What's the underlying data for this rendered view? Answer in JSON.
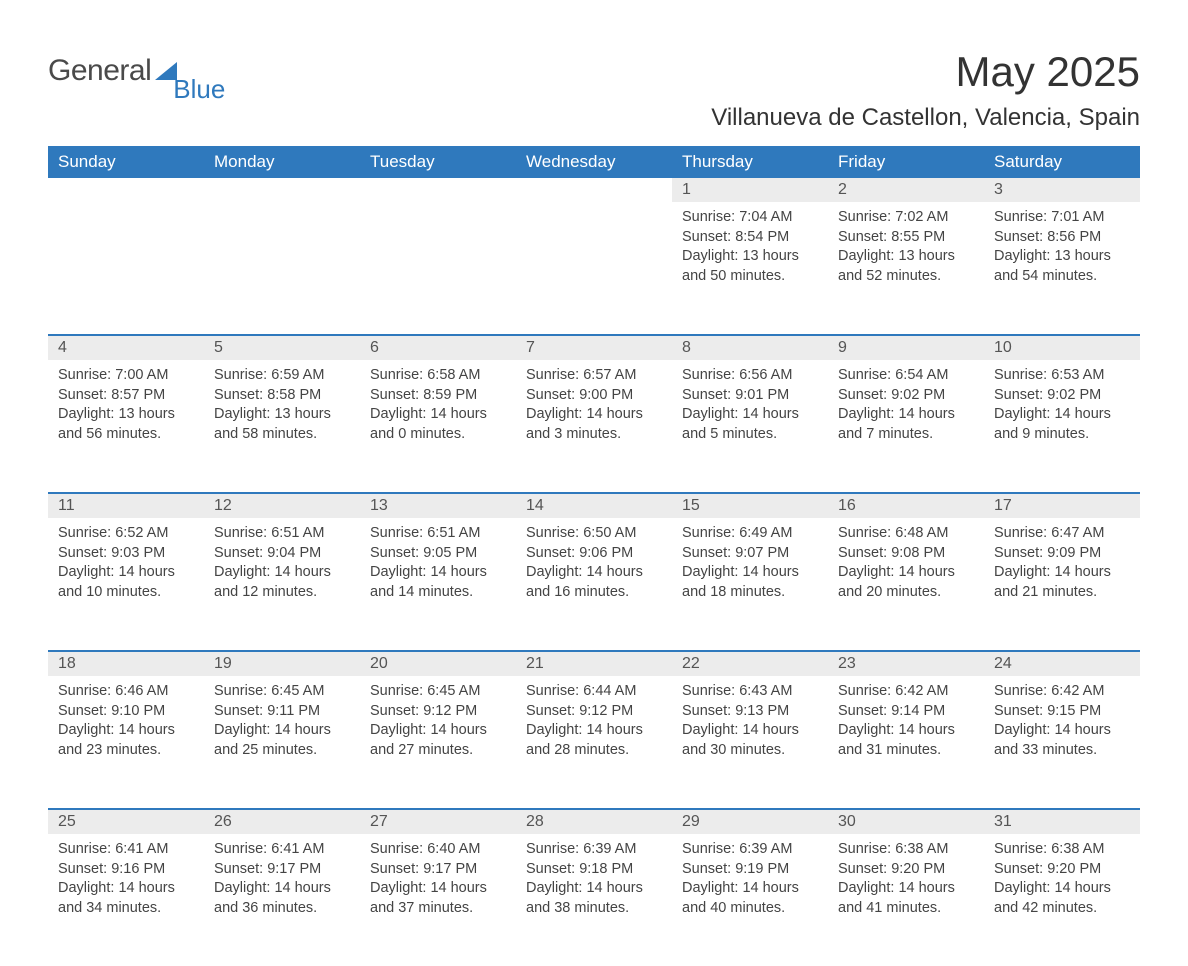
{
  "logo": {
    "word1": "General",
    "word2": "Blue"
  },
  "title": "May 2025",
  "location": "Villanueva de Castellon, Valencia, Spain",
  "colors": {
    "header_bg": "#2f79bd",
    "header_text": "#ffffff",
    "daynum_bg": "#ececec",
    "row_border": "#2f79bd",
    "body_text": "#444444",
    "page_bg": "#ffffff"
  },
  "font": {
    "family": "Arial",
    "header_size_pt": 13,
    "body_size_pt": 11,
    "title_size_pt": 32,
    "location_size_pt": 18
  },
  "weekdays": [
    "Sunday",
    "Monday",
    "Tuesday",
    "Wednesday",
    "Thursday",
    "Friday",
    "Saturday"
  ],
  "labels": {
    "sunrise": "Sunrise",
    "sunset": "Sunset",
    "daylight": "Daylight"
  },
  "layout": {
    "columns": 7,
    "rows": 5,
    "first_weekday_index": 4
  },
  "days": [
    {
      "n": 1,
      "sunrise": "7:04 AM",
      "sunset": "8:54 PM",
      "daylight": "13 hours and 50 minutes."
    },
    {
      "n": 2,
      "sunrise": "7:02 AM",
      "sunset": "8:55 PM",
      "daylight": "13 hours and 52 minutes."
    },
    {
      "n": 3,
      "sunrise": "7:01 AM",
      "sunset": "8:56 PM",
      "daylight": "13 hours and 54 minutes."
    },
    {
      "n": 4,
      "sunrise": "7:00 AM",
      "sunset": "8:57 PM",
      "daylight": "13 hours and 56 minutes."
    },
    {
      "n": 5,
      "sunrise": "6:59 AM",
      "sunset": "8:58 PM",
      "daylight": "13 hours and 58 minutes."
    },
    {
      "n": 6,
      "sunrise": "6:58 AM",
      "sunset": "8:59 PM",
      "daylight": "14 hours and 0 minutes."
    },
    {
      "n": 7,
      "sunrise": "6:57 AM",
      "sunset": "9:00 PM",
      "daylight": "14 hours and 3 minutes."
    },
    {
      "n": 8,
      "sunrise": "6:56 AM",
      "sunset": "9:01 PM",
      "daylight": "14 hours and 5 minutes."
    },
    {
      "n": 9,
      "sunrise": "6:54 AM",
      "sunset": "9:02 PM",
      "daylight": "14 hours and 7 minutes."
    },
    {
      "n": 10,
      "sunrise": "6:53 AM",
      "sunset": "9:02 PM",
      "daylight": "14 hours and 9 minutes."
    },
    {
      "n": 11,
      "sunrise": "6:52 AM",
      "sunset": "9:03 PM",
      "daylight": "14 hours and 10 minutes."
    },
    {
      "n": 12,
      "sunrise": "6:51 AM",
      "sunset": "9:04 PM",
      "daylight": "14 hours and 12 minutes."
    },
    {
      "n": 13,
      "sunrise": "6:51 AM",
      "sunset": "9:05 PM",
      "daylight": "14 hours and 14 minutes."
    },
    {
      "n": 14,
      "sunrise": "6:50 AM",
      "sunset": "9:06 PM",
      "daylight": "14 hours and 16 minutes."
    },
    {
      "n": 15,
      "sunrise": "6:49 AM",
      "sunset": "9:07 PM",
      "daylight": "14 hours and 18 minutes."
    },
    {
      "n": 16,
      "sunrise": "6:48 AM",
      "sunset": "9:08 PM",
      "daylight": "14 hours and 20 minutes."
    },
    {
      "n": 17,
      "sunrise": "6:47 AM",
      "sunset": "9:09 PM",
      "daylight": "14 hours and 21 minutes."
    },
    {
      "n": 18,
      "sunrise": "6:46 AM",
      "sunset": "9:10 PM",
      "daylight": "14 hours and 23 minutes."
    },
    {
      "n": 19,
      "sunrise": "6:45 AM",
      "sunset": "9:11 PM",
      "daylight": "14 hours and 25 minutes."
    },
    {
      "n": 20,
      "sunrise": "6:45 AM",
      "sunset": "9:12 PM",
      "daylight": "14 hours and 27 minutes."
    },
    {
      "n": 21,
      "sunrise": "6:44 AM",
      "sunset": "9:12 PM",
      "daylight": "14 hours and 28 minutes."
    },
    {
      "n": 22,
      "sunrise": "6:43 AM",
      "sunset": "9:13 PM",
      "daylight": "14 hours and 30 minutes."
    },
    {
      "n": 23,
      "sunrise": "6:42 AM",
      "sunset": "9:14 PM",
      "daylight": "14 hours and 31 minutes."
    },
    {
      "n": 24,
      "sunrise": "6:42 AM",
      "sunset": "9:15 PM",
      "daylight": "14 hours and 33 minutes."
    },
    {
      "n": 25,
      "sunrise": "6:41 AM",
      "sunset": "9:16 PM",
      "daylight": "14 hours and 34 minutes."
    },
    {
      "n": 26,
      "sunrise": "6:41 AM",
      "sunset": "9:17 PM",
      "daylight": "14 hours and 36 minutes."
    },
    {
      "n": 27,
      "sunrise": "6:40 AM",
      "sunset": "9:17 PM",
      "daylight": "14 hours and 37 minutes."
    },
    {
      "n": 28,
      "sunrise": "6:39 AM",
      "sunset": "9:18 PM",
      "daylight": "14 hours and 38 minutes."
    },
    {
      "n": 29,
      "sunrise": "6:39 AM",
      "sunset": "9:19 PM",
      "daylight": "14 hours and 40 minutes."
    },
    {
      "n": 30,
      "sunrise": "6:38 AM",
      "sunset": "9:20 PM",
      "daylight": "14 hours and 41 minutes."
    },
    {
      "n": 31,
      "sunrise": "6:38 AM",
      "sunset": "9:20 PM",
      "daylight": "14 hours and 42 minutes."
    }
  ]
}
